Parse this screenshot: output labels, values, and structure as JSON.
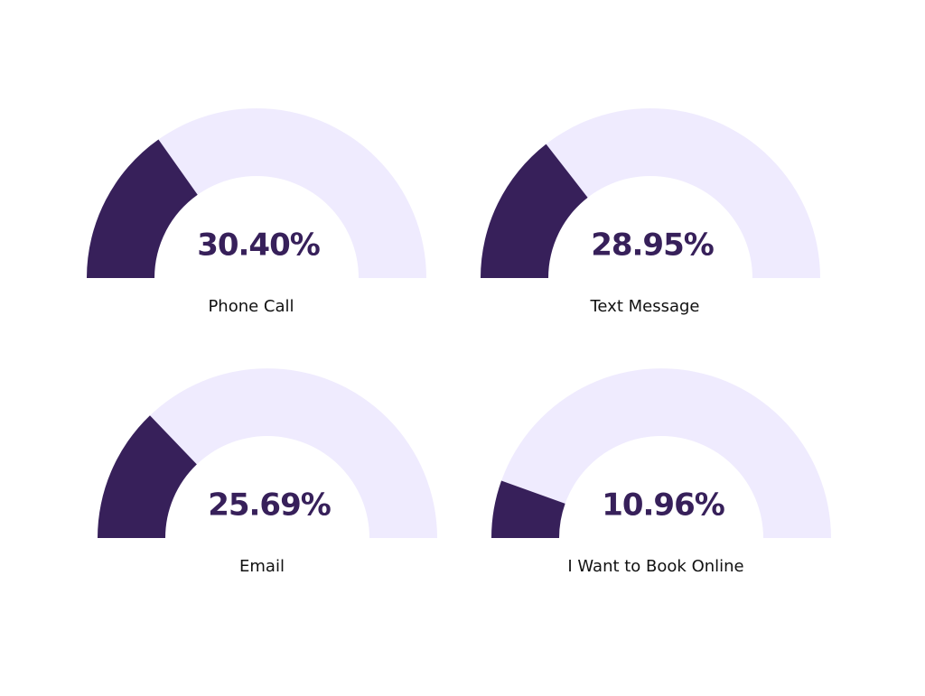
{
  "chart_data": [
    {
      "type": "gauge",
      "categories": [
        "Phone Call"
      ],
      "values": [
        30.4
      ],
      "value_labels": [
        "30.40%"
      ],
      "ylim": [
        0,
        100
      ],
      "color": "#37205a",
      "track_color": "#efebfe"
    },
    {
      "type": "gauge",
      "categories": [
        "Text Message"
      ],
      "values": [
        28.95
      ],
      "value_labels": [
        "28.95%"
      ],
      "ylim": [
        0,
        100
      ],
      "color": "#37205a",
      "track_color": "#efebfe"
    },
    {
      "type": "gauge",
      "categories": [
        "Email"
      ],
      "values": [
        25.69
      ],
      "value_labels": [
        "25.69%"
      ],
      "ylim": [
        0,
        100
      ],
      "color": "#37205a",
      "track_color": "#efebfe"
    },
    {
      "type": "gauge",
      "categories": [
        "I Want to Book Online"
      ],
      "values": [
        10.96
      ],
      "value_labels": [
        "10.96%"
      ],
      "ylim": [
        0,
        100
      ],
      "color": "#37205a",
      "track_color": "#efebfe"
    }
  ]
}
